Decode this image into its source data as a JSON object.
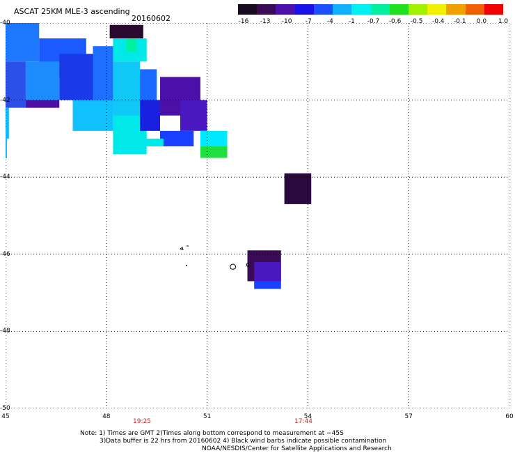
{
  "header": {
    "title": "ASCAT 25KM MLE-3 ascending",
    "date": "20160602"
  },
  "colorbar": {
    "labels": [
      "-16",
      "-13",
      "-10",
      "-7",
      "-4",
      "-1",
      "-0.7",
      "-0.6",
      "-0.5",
      "-0.4",
      "-0.1",
      "0.0",
      "1.0"
    ],
    "colors": [
      "#1a0a1e",
      "#3a0a55",
      "#4a10a8",
      "#1a10e8",
      "#1a50ff",
      "#10b0ff",
      "#00f0f0",
      "#00f0a0",
      "#20e020",
      "#a0f000",
      "#f0f000",
      "#f0a000",
      "#f06000",
      "#f00000"
    ]
  },
  "axes": {
    "lat_labels": [
      "-40",
      "-42",
      "-44",
      "-46",
      "-48",
      "-50"
    ],
    "lon_labels": [
      "45",
      "48",
      "51",
      "54",
      "57",
      "60"
    ],
    "times": [
      "19:25",
      "17:44"
    ]
  },
  "map": {
    "lon_range": [
      45,
      60
    ],
    "lat_range": [
      -40,
      -50
    ],
    "cells": [
      {
        "lon": 48.1,
        "lat": -40.05,
        "w": 1.0,
        "h": 0.35,
        "color": "#2a0a2e"
      },
      {
        "lon": 45.0,
        "lat": -40.0,
        "w": 1.0,
        "h": 1.0,
        "color": "#1e78ff"
      },
      {
        "lon": 46.0,
        "lat": -40.4,
        "w": 1.4,
        "h": 1.0,
        "color": "#1a5aff"
      },
      {
        "lon": 46.6,
        "lat": -40.8,
        "w": 1.0,
        "h": 1.2,
        "color": "#1a3ae8"
      },
      {
        "lon": 45.0,
        "lat": -41.0,
        "w": 0.6,
        "h": 1.2,
        "color": "#2a50e8"
      },
      {
        "lon": 45.6,
        "lat": -41.0,
        "w": 1.0,
        "h": 1.0,
        "color": "#1e8cff"
      },
      {
        "lon": 47.6,
        "lat": -40.6,
        "w": 0.6,
        "h": 1.6,
        "color": "#1e6eff"
      },
      {
        "lon": 48.2,
        "lat": -40.4,
        "w": 1.0,
        "h": 0.6,
        "color": "#00e8e8"
      },
      {
        "lon": 48.6,
        "lat": -40.4,
        "w": 0.3,
        "h": 0.35,
        "color": "#00f0a0"
      },
      {
        "lon": 48.2,
        "lat": -41.0,
        "w": 0.8,
        "h": 1.6,
        "color": "#10c8f8"
      },
      {
        "lon": 47.0,
        "lat": -42.0,
        "w": 1.2,
        "h": 0.8,
        "color": "#10c0ff"
      },
      {
        "lon": 48.2,
        "lat": -42.4,
        "w": 1.0,
        "h": 1.0,
        "color": "#00e8e8"
      },
      {
        "lon": 49.0,
        "lat": -41.2,
        "w": 0.5,
        "h": 0.8,
        "color": "#1a6aff"
      },
      {
        "lon": 49.6,
        "lat": -41.4,
        "w": 1.2,
        "h": 1.0,
        "color": "#4a10a8"
      },
      {
        "lon": 50.2,
        "lat": -42.0,
        "w": 0.8,
        "h": 0.8,
        "color": "#4a18c0"
      },
      {
        "lon": 49.0,
        "lat": -42.0,
        "w": 0.6,
        "h": 0.8,
        "color": "#1a20e0"
      },
      {
        "lon": 49.6,
        "lat": -42.8,
        "w": 1.0,
        "h": 0.4,
        "color": "#1a40ff"
      },
      {
        "lon": 50.8,
        "lat": -42.8,
        "w": 0.8,
        "h": 0.4,
        "color": "#00e8ff"
      },
      {
        "lon": 50.8,
        "lat": -43.2,
        "w": 0.8,
        "h": 0.3,
        "color": "#20e040"
      },
      {
        "lon": 48.5,
        "lat": -43.0,
        "w": 1.2,
        "h": 0.2,
        "color": "#00e8e8"
      },
      {
        "lon": 45.6,
        "lat": -42.0,
        "w": 1.0,
        "h": 0.2,
        "color": "#4a10a8"
      },
      {
        "lon": 45.0,
        "lat": -42.2,
        "w": 0.1,
        "h": 0.8,
        "color": "#10b8ff"
      },
      {
        "lon": 53.3,
        "lat": -43.9,
        "w": 0.8,
        "h": 0.8,
        "color": "#2a0a3e"
      },
      {
        "lon": 52.2,
        "lat": -45.9,
        "w": 1.0,
        "h": 0.8,
        "color": "#3a0a55"
      },
      {
        "lon": 52.4,
        "lat": -46.2,
        "w": 0.8,
        "h": 0.5,
        "color": "#4a18c0"
      },
      {
        "lon": 52.4,
        "lat": -46.7,
        "w": 0.8,
        "h": 0.2,
        "color": "#1a40ff"
      }
    ]
  },
  "notes": {
    "line1": "Note: 1) Times are GMT 2)Times along bottom correspond to measurement at −45S",
    "line2": "3)Data buffer is 22 hrs from 20160602 4) Black wind barbs indicate possible contamination",
    "line3": "NOAA/NESDIS/Center for Satellite Applications and Research"
  }
}
